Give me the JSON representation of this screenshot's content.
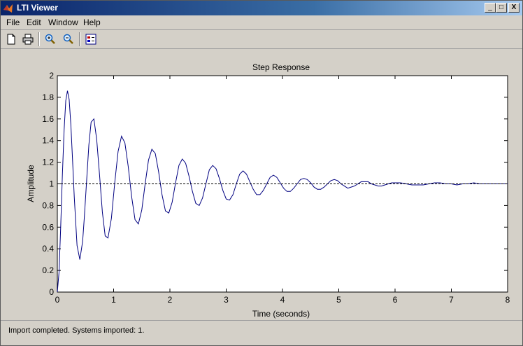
{
  "window": {
    "title": "LTI Viewer",
    "controls": [
      "_",
      "□",
      "X"
    ]
  },
  "menu": {
    "items": [
      "File",
      "Edit",
      "Window",
      "Help"
    ]
  },
  "toolbar": {
    "icons": [
      "new-document-icon",
      "print-icon",
      "zoom-in-icon",
      "zoom-out-icon",
      "plot-configuration-icon"
    ]
  },
  "colors": {
    "titlebar": "#0a246a",
    "response_line": "#000080",
    "steady_state_line": "#000000"
  },
  "status": {
    "text": "Import completed. Systems imported: 1."
  },
  "chart_data": {
    "type": "line",
    "title": "Step Response",
    "xlabel": "Time (seconds)",
    "ylabel": "Amplitude",
    "xlim": [
      0,
      8
    ],
    "ylim": [
      0,
      2
    ],
    "xticks": [
      "0",
      "1",
      "2",
      "3",
      "4",
      "5",
      "6",
      "7",
      "8"
    ],
    "yticks": [
      "0",
      "0.2",
      "0.4",
      "0.6",
      "0.8",
      "1",
      "1.2",
      "1.4",
      "1.6",
      "1.8",
      "2"
    ],
    "grid": false,
    "series": [
      {
        "style": "solid",
        "x": [
          0,
          0.03,
          0.06,
          0.09,
          0.12,
          0.15,
          0.18,
          0.21,
          0.24,
          0.27,
          0.3,
          0.35,
          0.4,
          0.45,
          0.48,
          0.52,
          0.56,
          0.6,
          0.65,
          0.7,
          0.75,
          0.8,
          0.85,
          0.9,
          0.96,
          1.02,
          1.08,
          1.14,
          1.2,
          1.26,
          1.32,
          1.38,
          1.44,
          1.5,
          1.56,
          1.62,
          1.68,
          1.74,
          1.8,
          1.86,
          1.92,
          1.98,
          2.04,
          2.1,
          2.16,
          2.22,
          2.28,
          2.34,
          2.4,
          2.46,
          2.52,
          2.58,
          2.64,
          2.7,
          2.76,
          2.82,
          2.88,
          2.94,
          3.0,
          3.06,
          3.12,
          3.18,
          3.24,
          3.3,
          3.36,
          3.42,
          3.48,
          3.54,
          3.6,
          3.66,
          3.72,
          3.78,
          3.84,
          3.9,
          3.96,
          4.02,
          4.08,
          4.14,
          4.2,
          4.26,
          4.32,
          4.38,
          4.44,
          4.5,
          4.56,
          4.62,
          4.68,
          4.74,
          4.8,
          4.86,
          4.92,
          4.98,
          5.04,
          5.1,
          5.16,
          5.22,
          5.28,
          5.34,
          5.4,
          5.46,
          5.52,
          5.58,
          5.64,
          5.7,
          5.76,
          5.82,
          5.88,
          5.94,
          6.0,
          6.1,
          6.2,
          6.3,
          6.4,
          6.5,
          6.6,
          6.7,
          6.8,
          6.9,
          7.0,
          7.1,
          7.2,
          7.3,
          7.4,
          7.5,
          7.6,
          7.7,
          7.8,
          7.9,
          8.0
        ],
        "y": [
          0,
          0.18,
          0.6,
          1.08,
          1.5,
          1.77,
          1.86,
          1.78,
          1.55,
          1.23,
          0.88,
          0.43,
          0.3,
          0.47,
          0.69,
          1.03,
          1.36,
          1.57,
          1.6,
          1.41,
          1.08,
          0.74,
          0.52,
          0.5,
          0.68,
          1.01,
          1.3,
          1.44,
          1.38,
          1.16,
          0.88,
          0.67,
          0.63,
          0.76,
          1.0,
          1.22,
          1.32,
          1.28,
          1.11,
          0.9,
          0.75,
          0.73,
          0.83,
          1.01,
          1.17,
          1.23,
          1.19,
          1.07,
          0.93,
          0.82,
          0.8,
          0.87,
          1.0,
          1.13,
          1.17,
          1.14,
          1.05,
          0.94,
          0.86,
          0.85,
          0.9,
          1.0,
          1.09,
          1.12,
          1.09,
          1.02,
          0.95,
          0.9,
          0.9,
          0.94,
          1.0,
          1.06,
          1.08,
          1.06,
          1.01,
          0.96,
          0.93,
          0.93,
          0.96,
          1.0,
          1.04,
          1.05,
          1.04,
          1.01,
          0.97,
          0.95,
          0.95,
          0.97,
          1.0,
          1.03,
          1.04,
          1.03,
          1.0,
          0.98,
          0.96,
          0.97,
          0.98,
          1.0,
          1.02,
          1.02,
          1.02,
          1.0,
          0.99,
          0.98,
          0.98,
          0.99,
          1.0,
          1.01,
          1.01,
          1.01,
          1.0,
          0.99,
          0.99,
          0.99,
          1.0,
          1.01,
          1.01,
          1.0,
          1.0,
          0.99,
          1.0,
          1.0,
          1.01,
          1.0,
          1.0,
          1.0,
          1.0,
          1.0,
          1.0
        ]
      },
      {
        "style": "dashed",
        "x": [
          0,
          8
        ],
        "y": [
          1,
          1
        ]
      }
    ]
  }
}
